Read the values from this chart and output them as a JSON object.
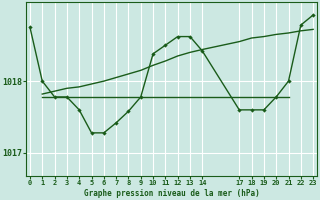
{
  "title": "Graphe pression niveau de la mer (hPa)",
  "bg_color": "#cce8e2",
  "grid_color": "#aad4cc",
  "line_color": "#1a5c1a",
  "xlim": [
    -0.3,
    23.3
  ],
  "ylim": [
    1016.68,
    1019.1
  ],
  "yticks": [
    1017,
    1018
  ],
  "x_ticks": [
    0,
    1,
    2,
    3,
    4,
    5,
    6,
    7,
    8,
    9,
    10,
    11,
    12,
    13,
    14,
    17,
    18,
    19,
    20,
    21,
    22,
    23
  ],
  "x_tick_labels": [
    "0",
    "1",
    "2",
    "3",
    "4",
    "5",
    "6",
    "7",
    "8",
    "9",
    "10",
    "11",
    "12",
    "13",
    "14",
    "17",
    "18",
    "19",
    "20",
    "21",
    "22",
    "23"
  ],
  "line_main_x": [
    0,
    1,
    2,
    3,
    4,
    5,
    6,
    7,
    8,
    9,
    10,
    11,
    12,
    13,
    14,
    17,
    18,
    19,
    20,
    21,
    22,
    23
  ],
  "line_main_y": [
    1018.75,
    1018.0,
    1017.78,
    1017.78,
    1017.6,
    1017.28,
    1017.28,
    1017.42,
    1017.58,
    1017.78,
    1018.38,
    1018.5,
    1018.62,
    1018.62,
    1018.42,
    1017.6,
    1017.6,
    1017.6,
    1017.78,
    1018.0,
    1018.78,
    1018.92
  ],
  "line_flat_x": [
    1,
    2,
    3,
    4,
    5,
    6,
    7,
    8,
    9,
    10,
    11,
    12,
    13,
    14,
    17,
    18,
    19,
    20,
    21
  ],
  "line_flat_y": [
    1017.78,
    1017.78,
    1017.78,
    1017.78,
    1017.78,
    1017.78,
    1017.78,
    1017.78,
    1017.78,
    1017.78,
    1017.78,
    1017.78,
    1017.78,
    1017.78,
    1017.78,
    1017.78,
    1017.78,
    1017.78,
    1017.78
  ],
  "line_rising_x": [
    1,
    2,
    3,
    4,
    5,
    6,
    7,
    8,
    9,
    10,
    11,
    12,
    13,
    14,
    17,
    18,
    19,
    20,
    21,
    22,
    23
  ],
  "line_rising_y": [
    1017.82,
    1017.86,
    1017.9,
    1017.92,
    1017.96,
    1018.0,
    1018.05,
    1018.1,
    1018.15,
    1018.22,
    1018.28,
    1018.35,
    1018.4,
    1018.44,
    1018.55,
    1018.6,
    1018.62,
    1018.65,
    1018.67,
    1018.7,
    1018.72
  ]
}
